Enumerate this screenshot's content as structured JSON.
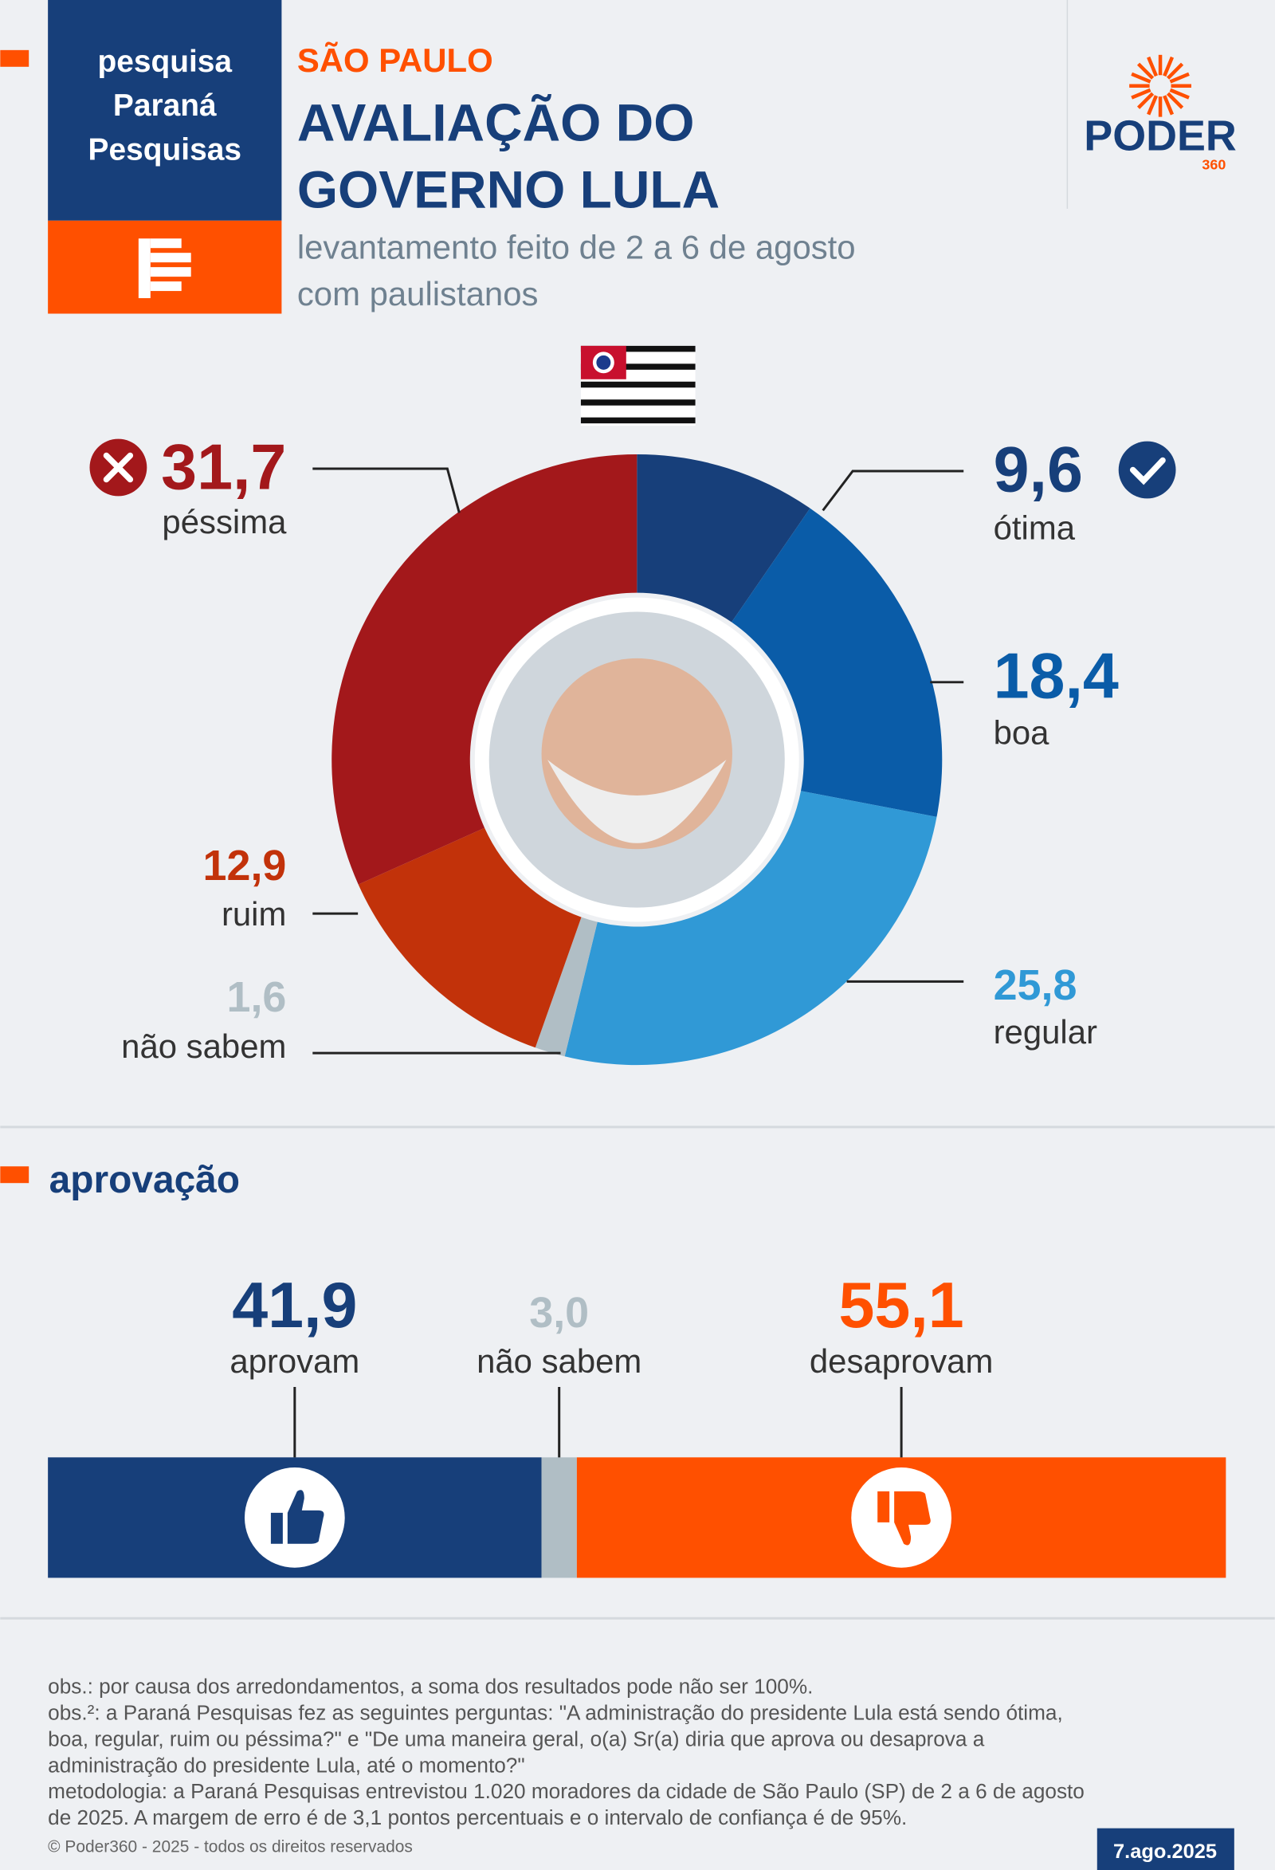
{
  "source_box": {
    "lines": [
      "pesquisa",
      "Paraná",
      "Pesquisas"
    ]
  },
  "header": {
    "region": "SÃO PAULO",
    "title_lines": [
      "AVALIAÇÃO DO",
      "GOVERNO LULA"
    ],
    "subtitle_lines": [
      "levantamento feito de 2 a 6 de agosto",
      "com paulistanos"
    ]
  },
  "logo": {
    "name": "PODER",
    "sub": "360"
  },
  "chart_data": [
    {
      "type": "donut",
      "categories": [
        "ótima",
        "boa",
        "regular",
        "não sabem",
        "ruim",
        "péssima"
      ],
      "values": [
        9.6,
        18.4,
        25.8,
        1.6,
        12.9,
        31.7
      ],
      "value_labels": [
        "9,6",
        "18,4",
        "25,8",
        "1,6",
        "12,9",
        "31,7"
      ],
      "colors": [
        "#173f7a",
        "#0a5ca8",
        "#3099d6",
        "#b0bec5",
        "#c2320a",
        "#a3181b"
      ]
    },
    {
      "type": "stacked-bar",
      "title": "aprovação",
      "series": [
        {
          "name": "aprovam",
          "color": "#173f7a",
          "values": [
            41.9
          ],
          "value_labels": [
            "41,9"
          ]
        },
        {
          "name": "não sabem",
          "color": "#b0bec5",
          "values": [
            3.0
          ],
          "value_labels": [
            "3,0"
          ]
        },
        {
          "name": "desaprovam",
          "color": "#ff5000",
          "values": [
            55.1
          ],
          "value_labels": [
            "55,1"
          ]
        }
      ],
      "xlim": [
        0,
        100
      ]
    }
  ],
  "notes": [
    "obs.: por causa dos arredondamentos, a soma dos resultados pode não ser 100%.",
    "obs.²: a Paraná Pesquisas fez as seguintes perguntas: \"A administração do presidente Lula está sendo ótima,",
    "boa, regular, ruim ou péssima?\" e \"De uma maneira geral, o(a) Sr(a) diria que aprova ou desaprova a",
    "administração do presidente Lula, até o momento?\"",
    "metodologia: a Paraná Pesquisas entrevistou 1.020 moradores da cidade de São Paulo (SP) de 2 a 6 de agosto",
    "de 2025. A margem de erro é de 3,1 pontos percentuais e o intervalo de confiança é de 95%."
  ],
  "footer": {
    "copyright": "© Poder360 - 2025 - todos os direitos reservados",
    "date": "7.ago.2025"
  }
}
